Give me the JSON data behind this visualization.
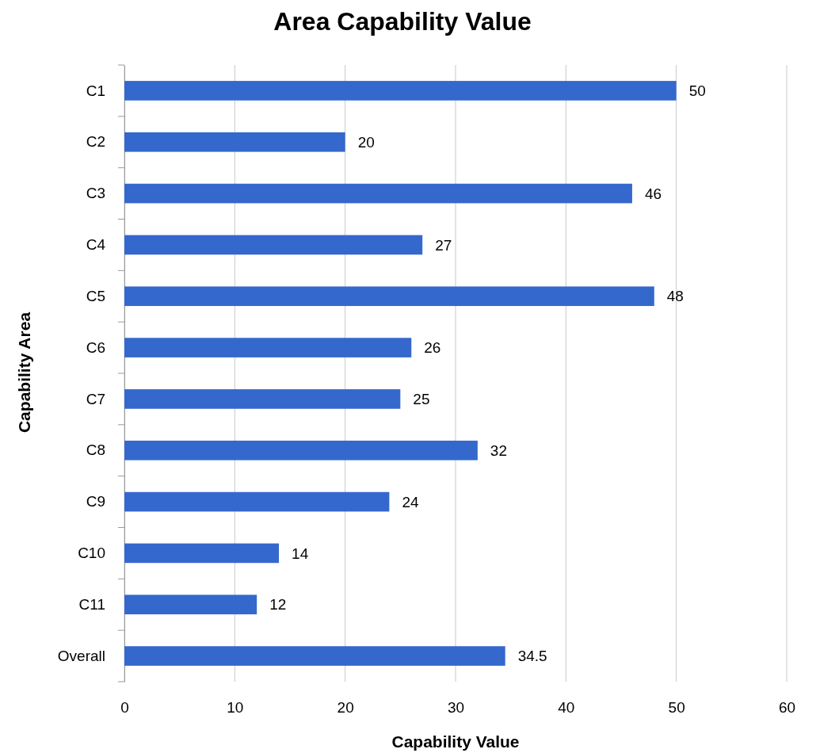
{
  "chart_data": {
    "type": "bar",
    "orientation": "horizontal",
    "title": "Area Capability Value",
    "xlabel": "Capability Value",
    "ylabel": "Capability Area",
    "categories": [
      "C1",
      "C2",
      "C3",
      "C4",
      "C5",
      "C6",
      "C7",
      "C8",
      "C9",
      "C10",
      "C11",
      "Overall"
    ],
    "values": [
      50,
      20,
      46,
      27,
      48,
      26,
      25,
      32,
      24,
      14,
      12,
      34.5
    ],
    "color": "#3468cc",
    "xlim": [
      0,
      60
    ],
    "xticks": [
      0,
      10,
      20,
      30,
      40,
      50,
      60
    ],
    "grid": "x",
    "data_labels": true
  }
}
